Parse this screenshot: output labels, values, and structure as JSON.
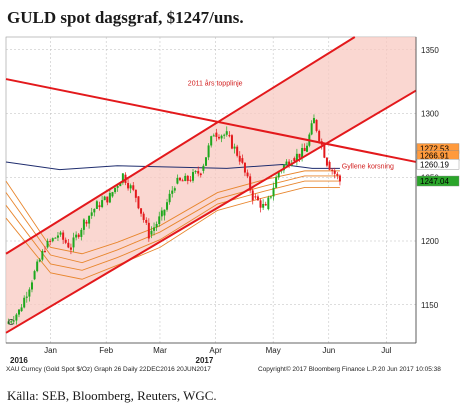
{
  "header": {
    "title": "GULD spot dagsgraf, $1247/uns."
  },
  "footer": {
    "source": "Källa: SEB, Bloomberg, Reuters, WGC.",
    "bloomberg_left": "XAU Curncy (Gold Spot  $/Oz) Graph 26  Daily 22DEC2016 20JUN2017",
    "bloomberg_mid": "Copyright© 2017 Bloomberg Finance L.P.",
    "bloomberg_right": "20 Jun 2017 10:05:38"
  },
  "chart_data": {
    "type": "candlestick",
    "title": "GULD spot dagsgraf, $1247/uns.",
    "ylim": [
      1120,
      1360
    ],
    "xlim": [
      "2016-12-22",
      "2017-07-31"
    ],
    "y_ticks": [
      1150,
      1200,
      1250,
      1300,
      1350
    ],
    "x_ticks": [
      {
        "date": "2017-01-15",
        "label": "Jan"
      },
      {
        "date": "2017-02-14",
        "label": "Feb"
      },
      {
        "date": "2017-03-15",
        "label": "Mar"
      },
      {
        "date": "2017-04-14",
        "label": "Apr"
      },
      {
        "date": "2017-05-15",
        "label": "May"
      },
      {
        "date": "2017-06-14",
        "label": "Jun"
      },
      {
        "date": "2017-07-15",
        "label": "Jul"
      }
    ],
    "year_labels": [
      {
        "date": "2016-12-22",
        "label": "2016"
      },
      {
        "date": "2017-04-01",
        "label": "2017"
      }
    ],
    "corner_label": "C",
    "grid": true,
    "value_badges": [
      {
        "value": 1272.53,
        "label": "1272.53",
        "color": "#ff9a3c"
      },
      {
        "value": 1266.91,
        "label": "1266.91",
        "color": "#ff9a3c"
      },
      {
        "value": 1260.19,
        "label": "1260.19",
        "color": "#ffffff"
      },
      {
        "value": 1247.04,
        "label": "1247.04",
        "color": "#2aa52a"
      }
    ],
    "annotations": [
      {
        "text": "2011 års topplinje",
        "date": "2017-03-30",
        "value": 1322
      },
      {
        "text": "Gyllene korsning",
        "date": "2017-06-21",
        "value": 1257
      }
    ],
    "trend_lines": {
      "channel_upper": [
        [
          "2016-12-22",
          1190
        ],
        [
          "2017-06-28",
          1360
        ]
      ],
      "channel_lower": [
        [
          "2016-12-22",
          1128
        ],
        [
          "2017-07-31",
          1318
        ]
      ],
      "top_line_2011": [
        [
          "2016-12-22",
          1327
        ],
        [
          "2017-07-31",
          1262
        ]
      ]
    },
    "moving_averages": {
      "ma_long": {
        "color": "#1f2d6e",
        "points": [
          [
            "2016-12-22",
            1262
          ],
          [
            "2017-01-20",
            1256
          ],
          [
            "2017-02-20",
            1259
          ],
          [
            "2017-03-20",
            1258
          ],
          [
            "2017-04-20",
            1257
          ],
          [
            "2017-05-20",
            1260
          ],
          [
            "2017-06-05",
            1257
          ],
          [
            "2017-06-20",
            1257
          ]
        ]
      },
      "bands": {
        "color": "#e8862e",
        "series": [
          [
            [
              "2016-12-22",
              1247
            ],
            [
              "2017-01-15",
              1195
            ],
            [
              "2017-02-01",
              1190
            ],
            [
              "2017-02-20",
              1199
            ],
            [
              "2017-03-15",
              1212
            ],
            [
              "2017-04-15",
              1238
            ],
            [
              "2017-05-10",
              1248
            ],
            [
              "2017-06-01",
              1255
            ],
            [
              "2017-06-20",
              1255
            ]
          ],
          [
            [
              "2016-12-22",
              1238
            ],
            [
              "2017-01-15",
              1189
            ],
            [
              "2017-02-01",
              1183
            ],
            [
              "2017-02-20",
              1193
            ],
            [
              "2017-03-15",
              1207
            ],
            [
              "2017-04-15",
              1233
            ],
            [
              "2017-05-10",
              1243
            ],
            [
              "2017-06-01",
              1251
            ],
            [
              "2017-06-20",
              1251
            ]
          ],
          [
            [
              "2016-12-22",
              1228
            ],
            [
              "2017-01-15",
              1182
            ],
            [
              "2017-02-01",
              1177
            ],
            [
              "2017-02-20",
              1187
            ],
            [
              "2017-03-15",
              1201
            ],
            [
              "2017-04-15",
              1229
            ],
            [
              "2017-05-10",
              1239
            ],
            [
              "2017-06-01",
              1247
            ],
            [
              "2017-06-20",
              1247
            ]
          ],
          [
            [
              "2016-12-22",
              1218
            ],
            [
              "2017-01-15",
              1175
            ],
            [
              "2017-02-01",
              1170
            ],
            [
              "2017-02-20",
              1181
            ],
            [
              "2017-03-15",
              1195
            ],
            [
              "2017-04-15",
              1224
            ],
            [
              "2017-05-10",
              1234
            ],
            [
              "2017-06-01",
              1242
            ],
            [
              "2017-06-20",
              1242
            ]
          ]
        ]
      }
    },
    "candles_daily_close": [
      [
        "2016-12-22",
        1135
      ],
      [
        "2016-12-29",
        1145
      ],
      [
        "2017-01-05",
        1170
      ],
      [
        "2017-01-12",
        1195
      ],
      [
        "2017-01-19",
        1205
      ],
      [
        "2017-01-26",
        1195
      ],
      [
        "2017-02-02",
        1215
      ],
      [
        "2017-02-09",
        1228
      ],
      [
        "2017-02-16",
        1235
      ],
      [
        "2017-02-23",
        1252
      ],
      [
        "2017-03-02",
        1235
      ],
      [
        "2017-03-09",
        1205
      ],
      [
        "2017-03-16",
        1220
      ],
      [
        "2017-03-23",
        1245
      ],
      [
        "2017-03-30",
        1248
      ],
      [
        "2017-04-06",
        1255
      ],
      [
        "2017-04-13",
        1285
      ],
      [
        "2017-04-20",
        1283
      ],
      [
        "2017-04-27",
        1265
      ],
      [
        "2017-05-04",
        1235
      ],
      [
        "2017-05-11",
        1225
      ],
      [
        "2017-05-18",
        1255
      ],
      [
        "2017-05-25",
        1265
      ],
      [
        "2017-06-01",
        1270
      ],
      [
        "2017-06-06",
        1295
      ],
      [
        "2017-06-13",
        1262
      ],
      [
        "2017-06-20",
        1247
      ]
    ]
  }
}
